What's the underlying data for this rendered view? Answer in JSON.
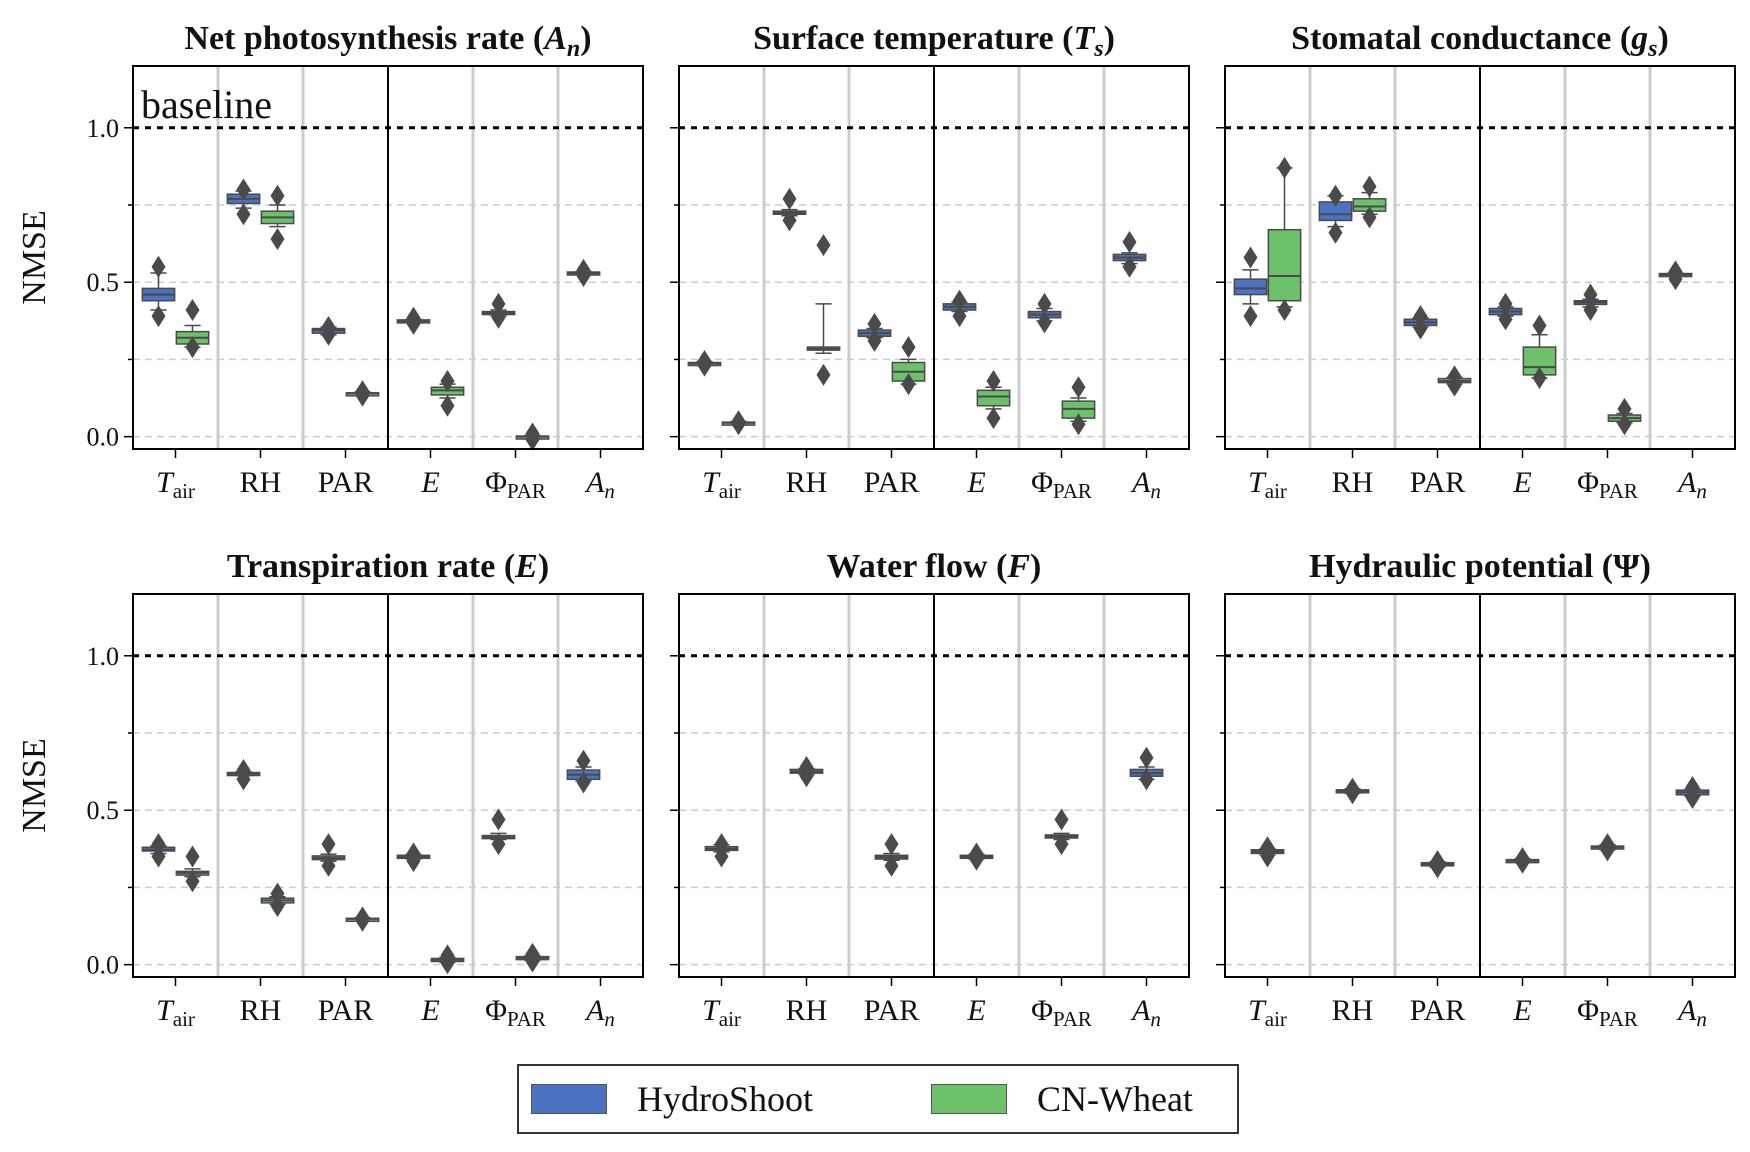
{
  "figure": {
    "y_axis_label": "NMSE",
    "y_ticks": [
      "0.0",
      "0.5",
      "1.0"
    ],
    "annotation": "baseline"
  },
  "legend": {
    "items": [
      {
        "label": "HydroShoot",
        "color": "#4c72c4"
      },
      {
        "label": "CN-Wheat",
        "color": "#6cc16a"
      }
    ]
  },
  "colors": {
    "hydroshoot": "#4c72c4",
    "cnwheat": "#6cc16a",
    "element": "#4a4a4a",
    "baseline_line": "#000000",
    "grid": "#cccccc",
    "separator": "#cccccc"
  },
  "chart_data": [
    {
      "type": "box",
      "title": "Net photosynthesis rate (A_n)",
      "title_text": "Net photosynthesis rate (",
      "title_symbol": "A",
      "title_sub": "n",
      "title_end": ")",
      "categories": [
        "Tair",
        "RH",
        "PAR",
        "E",
        "ΦPAR",
        "An"
      ],
      "ylabel": "NMSE",
      "ylim": [
        -0.04,
        1.2
      ],
      "baseline": 1.0,
      "series": [
        {
          "name": "HydroShoot",
          "boxes": [
            {
              "cat": 0,
              "q1": 0.44,
              "med": 0.46,
              "q3": 0.48,
              "wlo": 0.41,
              "whi": 0.53,
              "fl": [
                0.39,
                0.55
              ]
            },
            {
              "cat": 1,
              "q1": 0.755,
              "med": 0.77,
              "q3": 0.785,
              "wlo": 0.74,
              "whi": 0.795,
              "fl": [
                0.72,
                0.8
              ]
            },
            {
              "cat": 2,
              "q1": 0.335,
              "med": 0.345,
              "q3": 0.35,
              "wlo": 0.33,
              "whi": 0.355,
              "fl": [
                0.33,
                0.355
              ]
            },
            {
              "cat": 3,
              "q1": 0.372,
              "med": 0.375,
              "q3": 0.378,
              "wlo": 0.37,
              "whi": 0.38,
              "fl": [
                0.365,
                0.385
              ]
            },
            {
              "cat": 4,
              "q1": 0.397,
              "med": 0.4,
              "q3": 0.405,
              "wlo": 0.39,
              "whi": 0.41,
              "fl": [
                0.385,
                0.43
              ]
            },
            {
              "cat": 5,
              "q1": 0.527,
              "med": 0.53,
              "q3": 0.533,
              "wlo": 0.525,
              "whi": 0.535,
              "fl": [
                0.52,
                0.54
              ]
            }
          ]
        },
        {
          "name": "CN-Wheat",
          "boxes": [
            {
              "cat": 0,
              "q1": 0.3,
              "med": 0.32,
              "q3": 0.34,
              "wlo": 0.29,
              "whi": 0.36,
              "fl": [
                0.29,
                0.41
              ]
            },
            {
              "cat": 1,
              "q1": 0.69,
              "med": 0.71,
              "q3": 0.73,
              "wlo": 0.68,
              "whi": 0.75,
              "fl": [
                0.64,
                0.78
              ]
            },
            {
              "cat": 2,
              "q1": 0.137,
              "med": 0.14,
              "q3": 0.142,
              "wlo": 0.135,
              "whi": 0.145,
              "fl": [
                0.133,
                0.147
              ]
            },
            {
              "cat": 3,
              "q1": 0.135,
              "med": 0.15,
              "q3": 0.16,
              "wlo": 0.125,
              "whi": 0.17,
              "fl": [
                0.1,
                0.18
              ]
            },
            {
              "cat": 4,
              "q1": -0.002,
              "med": 0.0,
              "q3": 0.002,
              "wlo": -0.004,
              "whi": 0.004,
              "fl": [
                -0.01,
                0.01
              ]
            }
          ]
        }
      ]
    },
    {
      "type": "box",
      "title": "Surface temperature (T_s)",
      "title_text": "Surface temperature (",
      "title_symbol": "T",
      "title_sub": "s",
      "title_end": ")",
      "categories": [
        "Tair",
        "RH",
        "PAR",
        "E",
        "ΦPAR",
        "An"
      ],
      "ylim": [
        -0.04,
        1.2
      ],
      "baseline": 1.0,
      "series": [
        {
          "name": "HydroShoot",
          "boxes": [
            {
              "cat": 0,
              "q1": 0.235,
              "med": 0.238,
              "q3": 0.24,
              "wlo": 0.232,
              "whi": 0.243,
              "fl": [
                0.23,
                0.245
              ]
            },
            {
              "cat": 1,
              "q1": 0.72,
              "med": 0.725,
              "q3": 0.73,
              "wlo": 0.715,
              "whi": 0.735,
              "fl": [
                0.7,
                0.77
              ]
            },
            {
              "cat": 2,
              "q1": 0.325,
              "med": 0.335,
              "q3": 0.345,
              "wlo": 0.32,
              "whi": 0.35,
              "fl": [
                0.31,
                0.365
              ]
            },
            {
              "cat": 3,
              "q1": 0.41,
              "med": 0.42,
              "q3": 0.43,
              "wlo": 0.405,
              "whi": 0.435,
              "fl": [
                0.39,
                0.44
              ]
            },
            {
              "cat": 4,
              "q1": 0.385,
              "med": 0.395,
              "q3": 0.405,
              "wlo": 0.375,
              "whi": 0.415,
              "fl": [
                0.37,
                0.43
              ]
            },
            {
              "cat": 5,
              "q1": 0.57,
              "med": 0.58,
              "q3": 0.59,
              "wlo": 0.56,
              "whi": 0.595,
              "fl": [
                0.55,
                0.63
              ]
            }
          ]
        },
        {
          "name": "CN-Wheat",
          "boxes": [
            {
              "cat": 0,
              "q1": 0.043,
              "med": 0.045,
              "q3": 0.047,
              "wlo": 0.041,
              "whi": 0.049,
              "fl": [
                0.04,
                0.05
              ]
            },
            {
              "cat": 1,
              "q1": 0.28,
              "med": 0.285,
              "q3": 0.29,
              "wlo": 0.27,
              "whi": 0.43,
              "fl": [
                0.2,
                0.62
              ]
            },
            {
              "cat": 2,
              "q1": 0.18,
              "med": 0.21,
              "q3": 0.24,
              "wlo": 0.17,
              "whi": 0.25,
              "fl": [
                0.17,
                0.29
              ]
            },
            {
              "cat": 3,
              "q1": 0.1,
              "med": 0.13,
              "q3": 0.15,
              "wlo": 0.09,
              "whi": 0.16,
              "fl": [
                0.06,
                0.18
              ]
            },
            {
              "cat": 4,
              "q1": 0.06,
              "med": 0.09,
              "q3": 0.115,
              "wlo": 0.05,
              "whi": 0.125,
              "fl": [
                0.04,
                0.16
              ]
            }
          ]
        }
      ]
    },
    {
      "type": "box",
      "title": "Stomatal conductance (g_s)",
      "title_text": "Stomatal conductance (",
      "title_symbol": "g",
      "title_sub": "s",
      "title_end": ")",
      "categories": [
        "Tair",
        "RH",
        "PAR",
        "E",
        "ΦPAR",
        "An"
      ],
      "ylim": [
        -0.04,
        1.2
      ],
      "baseline": 1.0,
      "series": [
        {
          "name": "HydroShoot",
          "boxes": [
            {
              "cat": 0,
              "q1": 0.46,
              "med": 0.48,
              "q3": 0.51,
              "wlo": 0.43,
              "whi": 0.54,
              "fl": [
                0.39,
                0.58
              ]
            },
            {
              "cat": 1,
              "q1": 0.7,
              "med": 0.72,
              "q3": 0.76,
              "wlo": 0.68,
              "whi": 0.78,
              "fl": [
                0.66,
                0.78
              ]
            },
            {
              "cat": 2,
              "q1": 0.36,
              "med": 0.37,
              "q3": 0.38,
              "wlo": 0.355,
              "whi": 0.385,
              "fl": [
                0.35,
                0.39
              ]
            },
            {
              "cat": 3,
              "q1": 0.395,
              "med": 0.405,
              "q3": 0.415,
              "wlo": 0.39,
              "whi": 0.42,
              "fl": [
                0.38,
                0.43
              ]
            },
            {
              "cat": 4,
              "q1": 0.428,
              "med": 0.435,
              "q3": 0.44,
              "wlo": 0.42,
              "whi": 0.445,
              "fl": [
                0.41,
                0.46
              ]
            },
            {
              "cat": 5,
              "q1": 0.522,
              "med": 0.525,
              "q3": 0.528,
              "wlo": 0.52,
              "whi": 0.53,
              "fl": [
                0.51,
                0.535
              ]
            }
          ]
        },
        {
          "name": "CN-Wheat",
          "boxes": [
            {
              "cat": 0,
              "q1": 0.44,
              "med": 0.52,
              "q3": 0.67,
              "wlo": 0.42,
              "whi": 0.87,
              "fl": [
                0.41,
                0.87
              ]
            },
            {
              "cat": 1,
              "q1": 0.73,
              "med": 0.745,
              "q3": 0.77,
              "wlo": 0.72,
              "whi": 0.79,
              "fl": [
                0.71,
                0.81
              ]
            },
            {
              "cat": 2,
              "q1": 0.175,
              "med": 0.18,
              "q3": 0.188,
              "wlo": 0.17,
              "whi": 0.192,
              "fl": [
                0.165,
                0.195
              ]
            },
            {
              "cat": 3,
              "q1": 0.2,
              "med": 0.225,
              "q3": 0.29,
              "wlo": 0.19,
              "whi": 0.33,
              "fl": [
                0.19,
                0.36
              ]
            },
            {
              "cat": 4,
              "q1": 0.05,
              "med": 0.06,
              "q3": 0.07,
              "wlo": 0.045,
              "whi": 0.075,
              "fl": [
                0.04,
                0.09
              ]
            }
          ]
        }
      ]
    },
    {
      "type": "box",
      "title": "Transpiration rate (E)",
      "title_text": "Transpiration rate (",
      "title_symbol": "E",
      "title_sub": "",
      "title_end": ")",
      "categories": [
        "Tair",
        "RH",
        "PAR",
        "E",
        "ΦPAR",
        "An"
      ],
      "ylabel": "NMSE",
      "ylim": [
        -0.04,
        1.2
      ],
      "baseline": 1.0,
      "series": [
        {
          "name": "HydroShoot",
          "boxes": [
            {
              "cat": 0,
              "q1": 0.368,
              "med": 0.372,
              "q3": 0.38,
              "wlo": 0.36,
              "whi": 0.385,
              "fl": [
                0.35,
                0.39
              ]
            },
            {
              "cat": 1,
              "q1": 0.615,
              "med": 0.618,
              "q3": 0.622,
              "wlo": 0.612,
              "whi": 0.625,
              "fl": [
                0.6,
                0.63
              ]
            },
            {
              "cat": 2,
              "q1": 0.34,
              "med": 0.345,
              "q3": 0.352,
              "wlo": 0.335,
              "whi": 0.358,
              "fl": [
                0.32,
                0.39
              ]
            },
            {
              "cat": 3,
              "q1": 0.346,
              "med": 0.35,
              "q3": 0.354,
              "wlo": 0.342,
              "whi": 0.356,
              "fl": [
                0.335,
                0.36
              ]
            },
            {
              "cat": 4,
              "q1": 0.408,
              "med": 0.412,
              "q3": 0.418,
              "wlo": 0.405,
              "whi": 0.425,
              "fl": [
                0.39,
                0.47
              ]
            },
            {
              "cat": 5,
              "q1": 0.6,
              "med": 0.615,
              "q3": 0.63,
              "wlo": 0.595,
              "whi": 0.64,
              "fl": [
                0.59,
                0.66
              ]
            }
          ]
        },
        {
          "name": "CN-Wheat",
          "boxes": [
            {
              "cat": 0,
              "q1": 0.29,
              "med": 0.297,
              "q3": 0.302,
              "wlo": 0.285,
              "whi": 0.31,
              "fl": [
                0.27,
                0.35
              ]
            },
            {
              "cat": 1,
              "q1": 0.2,
              "med": 0.208,
              "q3": 0.215,
              "wlo": 0.195,
              "whi": 0.22,
              "fl": [
                0.19,
                0.23
              ]
            },
            {
              "cat": 2,
              "q1": 0.145,
              "med": 0.148,
              "q3": 0.15,
              "wlo": 0.143,
              "whi": 0.152,
              "fl": [
                0.142,
                0.153
              ]
            },
            {
              "cat": 3,
              "q1": 0.012,
              "med": 0.016,
              "q3": 0.02,
              "wlo": 0.008,
              "whi": 0.024,
              "fl": [
                0.005,
                0.03
              ]
            },
            {
              "cat": 4,
              "q1": 0.018,
              "med": 0.022,
              "q3": 0.026,
              "wlo": 0.014,
              "whi": 0.03,
              "fl": [
                0.01,
                0.035
              ]
            }
          ]
        }
      ]
    },
    {
      "type": "box",
      "title": "Water flow (F)",
      "title_text": "Water flow (",
      "title_symbol": "F",
      "title_sub": "",
      "title_end": ")",
      "categories": [
        "Tair",
        "RH",
        "PAR",
        "E",
        "ΦPAR",
        "An"
      ],
      "ylim": [
        -0.04,
        1.2
      ],
      "baseline": 1.0,
      "series": [
        {
          "name": "HydroShoot",
          "boxes": [
            {
              "cat": 0,
              "q1": 0.37,
              "med": 0.375,
              "q3": 0.382,
              "wlo": 0.365,
              "whi": 0.388,
              "fl": [
                0.35,
                0.39
              ]
            },
            {
              "cat": 1,
              "q1": 0.62,
              "med": 0.625,
              "q3": 0.632,
              "wlo": 0.615,
              "whi": 0.635,
              "fl": [
                0.61,
                0.64
              ]
            },
            {
              "cat": 2,
              "q1": 0.342,
              "med": 0.348,
              "q3": 0.354,
              "wlo": 0.338,
              "whi": 0.36,
              "fl": [
                0.32,
                0.39
              ]
            },
            {
              "cat": 3,
              "q1": 0.346,
              "med": 0.35,
              "q3": 0.354,
              "wlo": 0.342,
              "whi": 0.357,
              "fl": [
                0.34,
                0.36
              ]
            },
            {
              "cat": 4,
              "q1": 0.41,
              "med": 0.415,
              "q3": 0.42,
              "wlo": 0.405,
              "whi": 0.425,
              "fl": [
                0.39,
                0.47
              ]
            },
            {
              "cat": 5,
              "q1": 0.61,
              "med": 0.62,
              "q3": 0.632,
              "wlo": 0.6,
              "whi": 0.64,
              "fl": [
                0.6,
                0.67
              ]
            }
          ]
        }
      ]
    },
    {
      "type": "box",
      "title": "Hydraulic potential (Ψ)",
      "title_text": "Hydraulic potential (",
      "title_symbol": "Ψ",
      "title_sub": "",
      "title_end": ")",
      "categories": [
        "Tair",
        "RH",
        "PAR",
        "E",
        "ΦPAR",
        "An"
      ],
      "ylim": [
        -0.04,
        1.2
      ],
      "baseline": 1.0,
      "series": [
        {
          "name": "HydroShoot",
          "boxes": [
            {
              "cat": 0,
              "q1": 0.36,
              "med": 0.366,
              "q3": 0.372,
              "wlo": 0.355,
              "whi": 0.376,
              "fl": [
                0.35,
                0.38
              ]
            },
            {
              "cat": 1,
              "q1": 0.558,
              "med": 0.562,
              "q3": 0.566,
              "wlo": 0.555,
              "whi": 0.569,
              "fl": [
                0.555,
                0.57
              ]
            },
            {
              "cat": 2,
              "q1": 0.32,
              "med": 0.325,
              "q3": 0.33,
              "wlo": 0.316,
              "whi": 0.333,
              "fl": [
                0.315,
                0.335
              ]
            },
            {
              "cat": 3,
              "q1": 0.334,
              "med": 0.337,
              "q3": 0.34,
              "wlo": 0.331,
              "whi": 0.343,
              "fl": [
                0.33,
                0.345
              ]
            },
            {
              "cat": 4,
              "q1": 0.376,
              "med": 0.38,
              "q3": 0.384,
              "wlo": 0.372,
              "whi": 0.388,
              "fl": [
                0.37,
                0.39
              ]
            },
            {
              "cat": 5,
              "q1": 0.55,
              "med": 0.558,
              "q3": 0.565,
              "wlo": 0.545,
              "whi": 0.57,
              "fl": [
                0.54,
                0.575
              ]
            }
          ]
        }
      ]
    }
  ]
}
